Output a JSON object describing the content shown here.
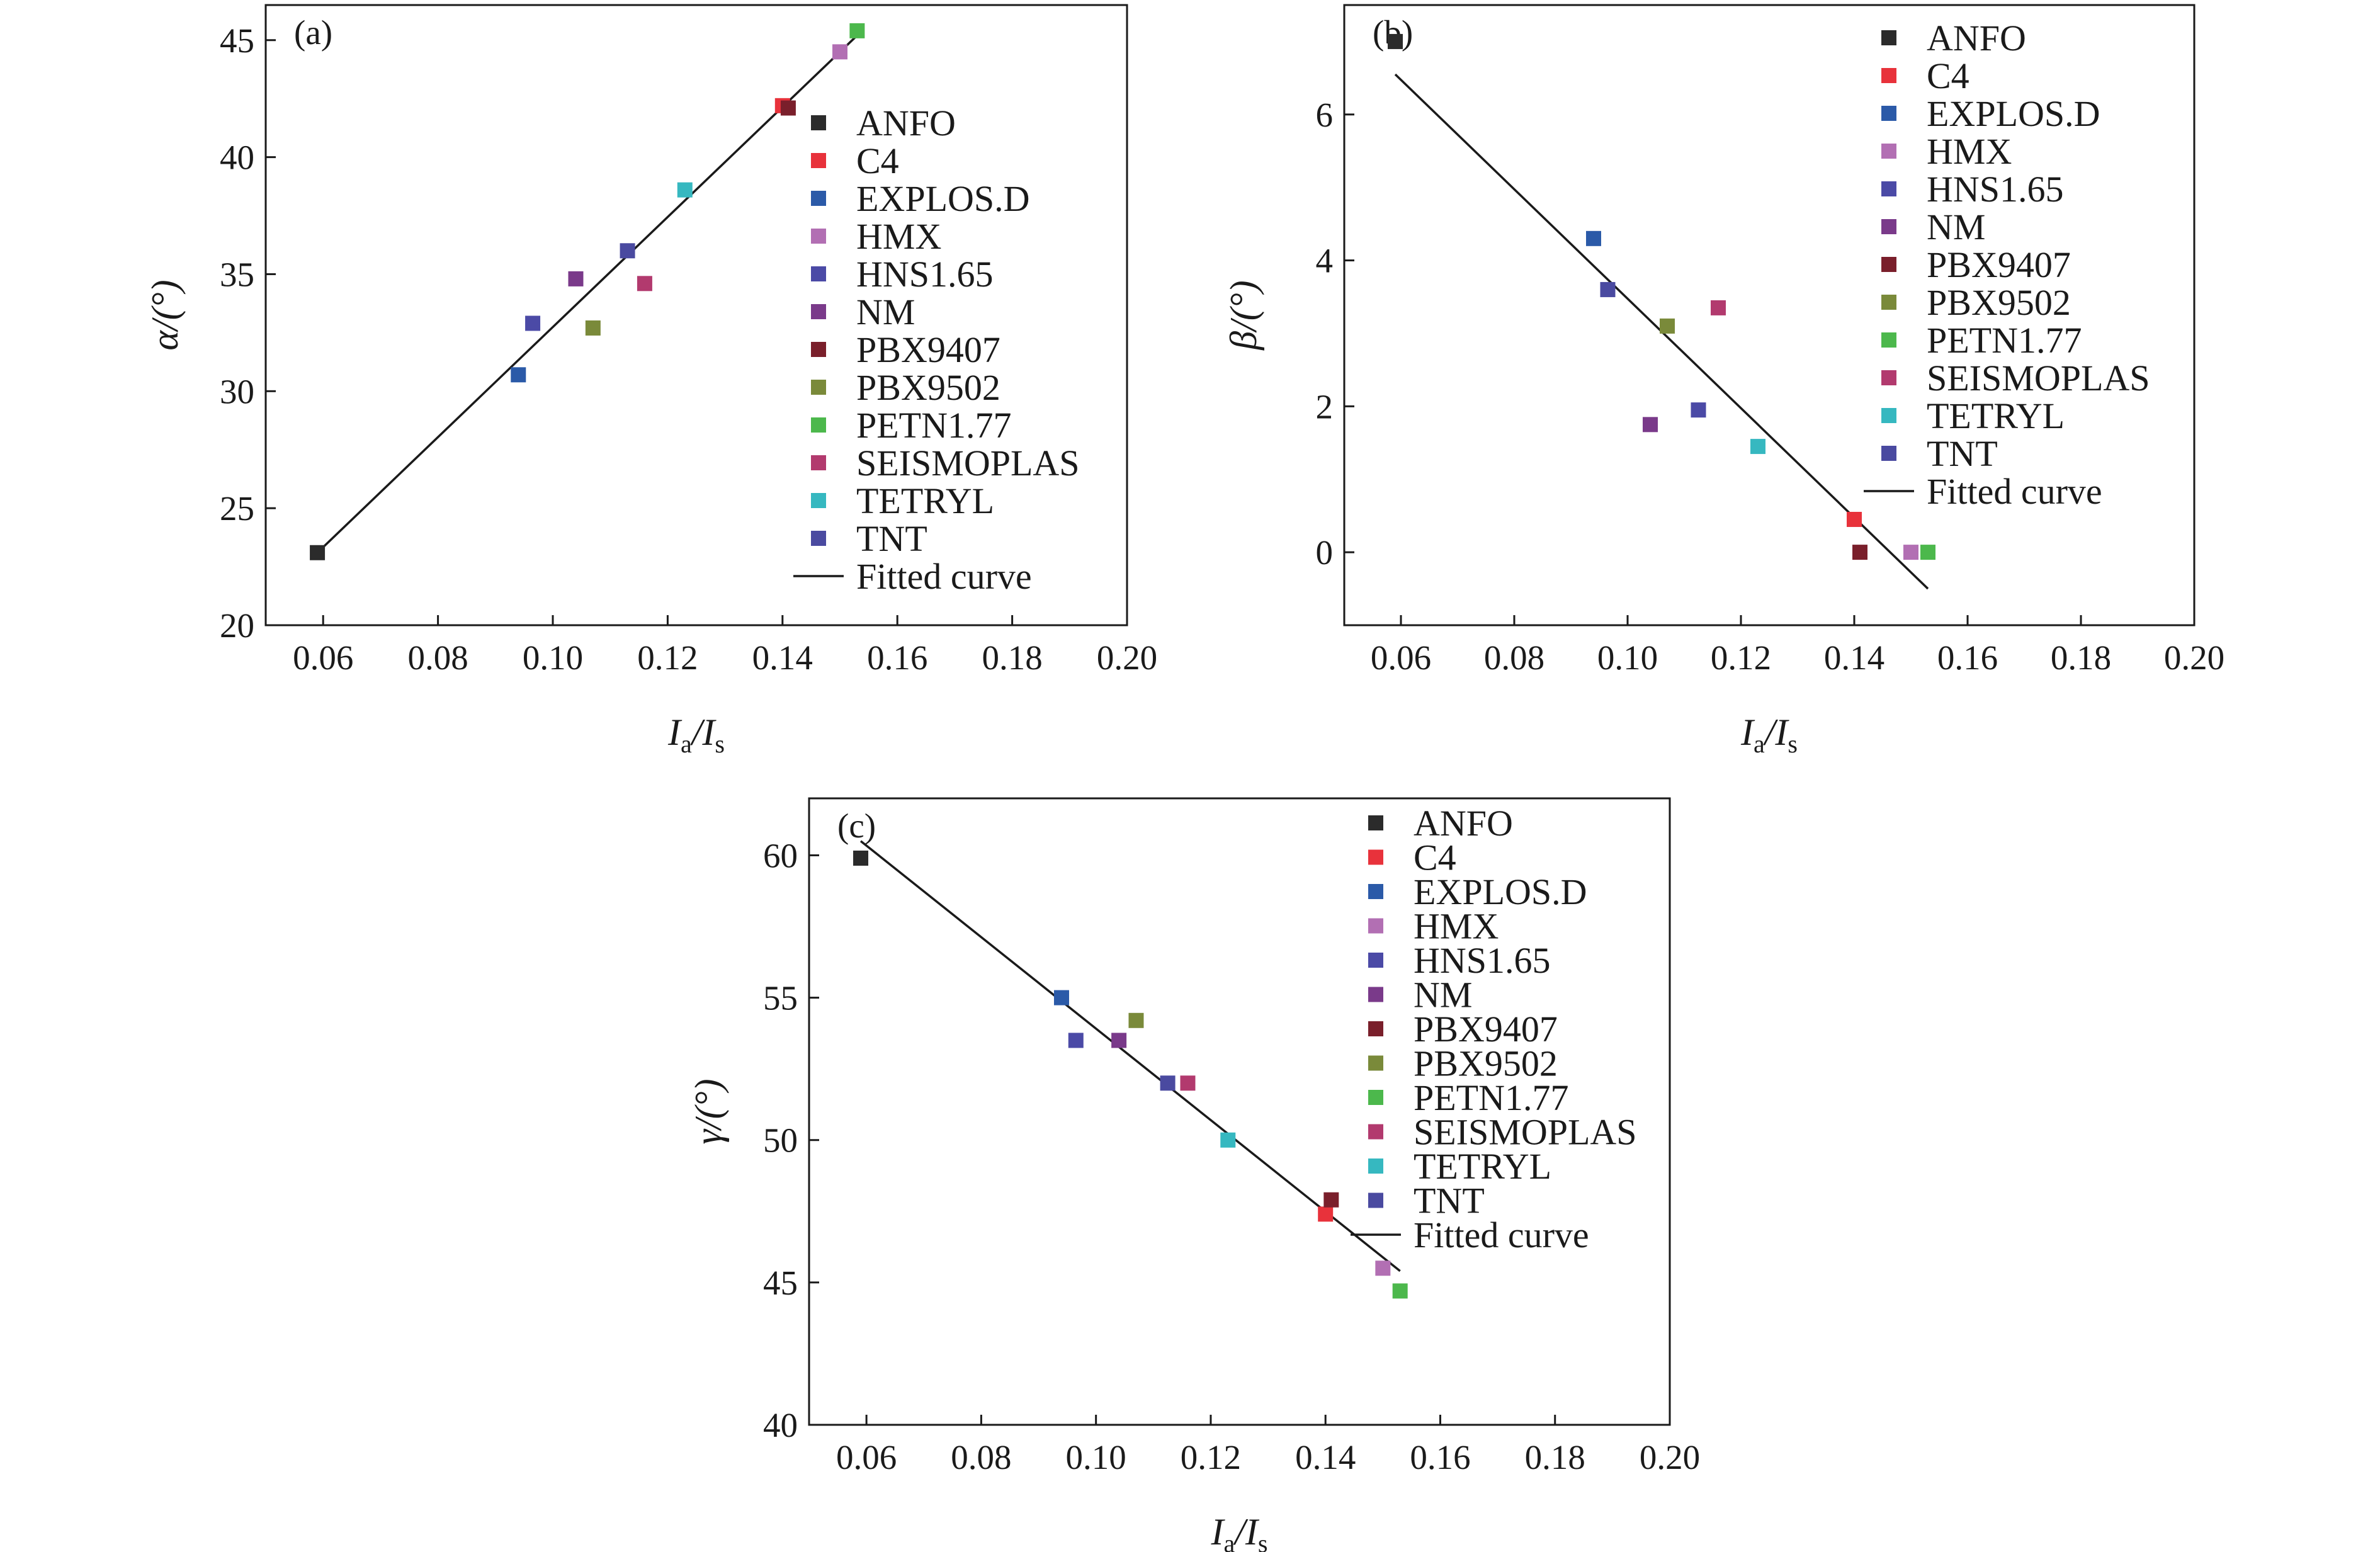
{
  "series_colors": {
    "ANFO": "#2b2b2b",
    "C4": "#e8323b",
    "EXPLOS.D": "#2b5aa8",
    "HMX": "#b26fb3",
    "HNS1.65": "#4b4aa6",
    "NM": "#7a3a8a",
    "PBX9407": "#7a1f2b",
    "PBX9502": "#7a8a3a",
    "PETN1.77": "#4cb84c",
    "SEISMOPLAS": "#b23a6e",
    "TETRYL": "#36b8c0",
    "TNT": "#4a4aa0"
  },
  "chart_data": [
    {
      "type": "scatter",
      "panel": "(a)",
      "xlabel": {
        "main": "I",
        "sub1": "a",
        "sep": "/I",
        "sub2": "s"
      },
      "ylabel": "α/(°)",
      "xlim": [
        0.05,
        0.2
      ],
      "ylim": [
        20,
        46.5
      ],
      "xticks": [
        "0.06",
        "0.08",
        "0.10",
        "0.12",
        "0.14",
        "0.16",
        "0.18",
        "0.20"
      ],
      "yticks": [
        "20",
        "25",
        "30",
        "35",
        "40",
        "45"
      ],
      "legend_position": "middle-right",
      "fit_label": "Fitted curve",
      "fit_line": {
        "x": [
          0.059,
          0.153
        ],
        "y": [
          23.1,
          45.2
        ]
      },
      "series": [
        {
          "name": "ANFO",
          "x": 0.059,
          "y": 23.1
        },
        {
          "name": "C4",
          "x": 0.14,
          "y": 42.2
        },
        {
          "name": "EXPLOS.D",
          "x": 0.094,
          "y": 30.7
        },
        {
          "name": "HMX",
          "x": 0.15,
          "y": 44.5
        },
        {
          "name": "HNS1.65",
          "x": 0.0965,
          "y": 32.9
        },
        {
          "name": "NM",
          "x": 0.104,
          "y": 34.8
        },
        {
          "name": "PBX9407",
          "x": 0.141,
          "y": 42.1
        },
        {
          "name": "PBX9502",
          "x": 0.107,
          "y": 32.7
        },
        {
          "name": "PETN1.77",
          "x": 0.153,
          "y": 45.4
        },
        {
          "name": "SEISMOPLAS",
          "x": 0.116,
          "y": 34.6
        },
        {
          "name": "TETRYL",
          "x": 0.123,
          "y": 38.6
        },
        {
          "name": "TNT",
          "x": 0.113,
          "y": 36.0
        }
      ]
    },
    {
      "type": "scatter",
      "panel": "(b)",
      "xlabel": {
        "main": "I",
        "sub1": "a",
        "sep": "/I",
        "sub2": "s"
      },
      "ylabel": "β/(°)",
      "xlim": [
        0.05,
        0.2
      ],
      "ylim": [
        -1,
        7.5
      ],
      "xticks": [
        "0.06",
        "0.08",
        "0.10",
        "0.12",
        "0.14",
        "0.16",
        "0.18",
        "0.20"
      ],
      "yticks": [
        "0",
        "2",
        "4",
        "6"
      ],
      "legend_position": "top-right",
      "fit_label": "Fitted curve",
      "fit_line": {
        "x": [
          0.059,
          0.153
        ],
        "y": [
          6.55,
          -0.5
        ]
      },
      "series": [
        {
          "name": "ANFO",
          "x": 0.059,
          "y": 7.0
        },
        {
          "name": "C4",
          "x": 0.14,
          "y": 0.45
        },
        {
          "name": "EXPLOS.D",
          "x": 0.094,
          "y": 4.3
        },
        {
          "name": "HMX",
          "x": 0.15,
          "y": 0.0
        },
        {
          "name": "HNS1.65",
          "x": 0.1125,
          "y": 1.95
        },
        {
          "name": "NM",
          "x": 0.104,
          "y": 1.75
        },
        {
          "name": "PBX9407",
          "x": 0.141,
          "y": 0.0
        },
        {
          "name": "PBX9502",
          "x": 0.107,
          "y": 3.1
        },
        {
          "name": "PETN1.77",
          "x": 0.153,
          "y": 0.0
        },
        {
          "name": "SEISMOPLAS",
          "x": 0.116,
          "y": 3.35
        },
        {
          "name": "TETRYL",
          "x": 0.123,
          "y": 1.45
        },
        {
          "name": "TNT",
          "x": 0.0965,
          "y": 3.6
        }
      ]
    },
    {
      "type": "scatter",
      "panel": "(c)",
      "xlabel": {
        "main": "I",
        "sub1": "a",
        "sep": "/I",
        "sub2": "s"
      },
      "ylabel": "γ/(°)",
      "xlim": [
        0.05,
        0.2
      ],
      "ylim": [
        40,
        62
      ],
      "xticks": [
        "0.06",
        "0.08",
        "0.10",
        "0.12",
        "0.14",
        "0.16",
        "0.18",
        "0.20"
      ],
      "yticks": [
        "40",
        "45",
        "50",
        "55",
        "60"
      ],
      "legend_position": "top-right",
      "fit_label": "Fitted curve",
      "fit_line": {
        "x": [
          0.059,
          0.153
        ],
        "y": [
          60.5,
          45.4
        ]
      },
      "series": [
        {
          "name": "ANFO",
          "x": 0.059,
          "y": 59.9
        },
        {
          "name": "C4",
          "x": 0.14,
          "y": 47.4
        },
        {
          "name": "EXPLOS.D",
          "x": 0.094,
          "y": 55.0
        },
        {
          "name": "HMX",
          "x": 0.15,
          "y": 45.5
        },
        {
          "name": "HNS1.65",
          "x": 0.0965,
          "y": 53.5
        },
        {
          "name": "NM",
          "x": 0.104,
          "y": 53.5
        },
        {
          "name": "PBX9407",
          "x": 0.141,
          "y": 47.9
        },
        {
          "name": "PBX9502",
          "x": 0.107,
          "y": 54.2
        },
        {
          "name": "PETN1.77",
          "x": 0.153,
          "y": 44.7
        },
        {
          "name": "SEISMOPLAS",
          "x": 0.116,
          "y": 52.0
        },
        {
          "name": "TETRYL",
          "x": 0.123,
          "y": 50.0
        },
        {
          "name": "TNT",
          "x": 0.1125,
          "y": 52.0
        }
      ]
    }
  ]
}
